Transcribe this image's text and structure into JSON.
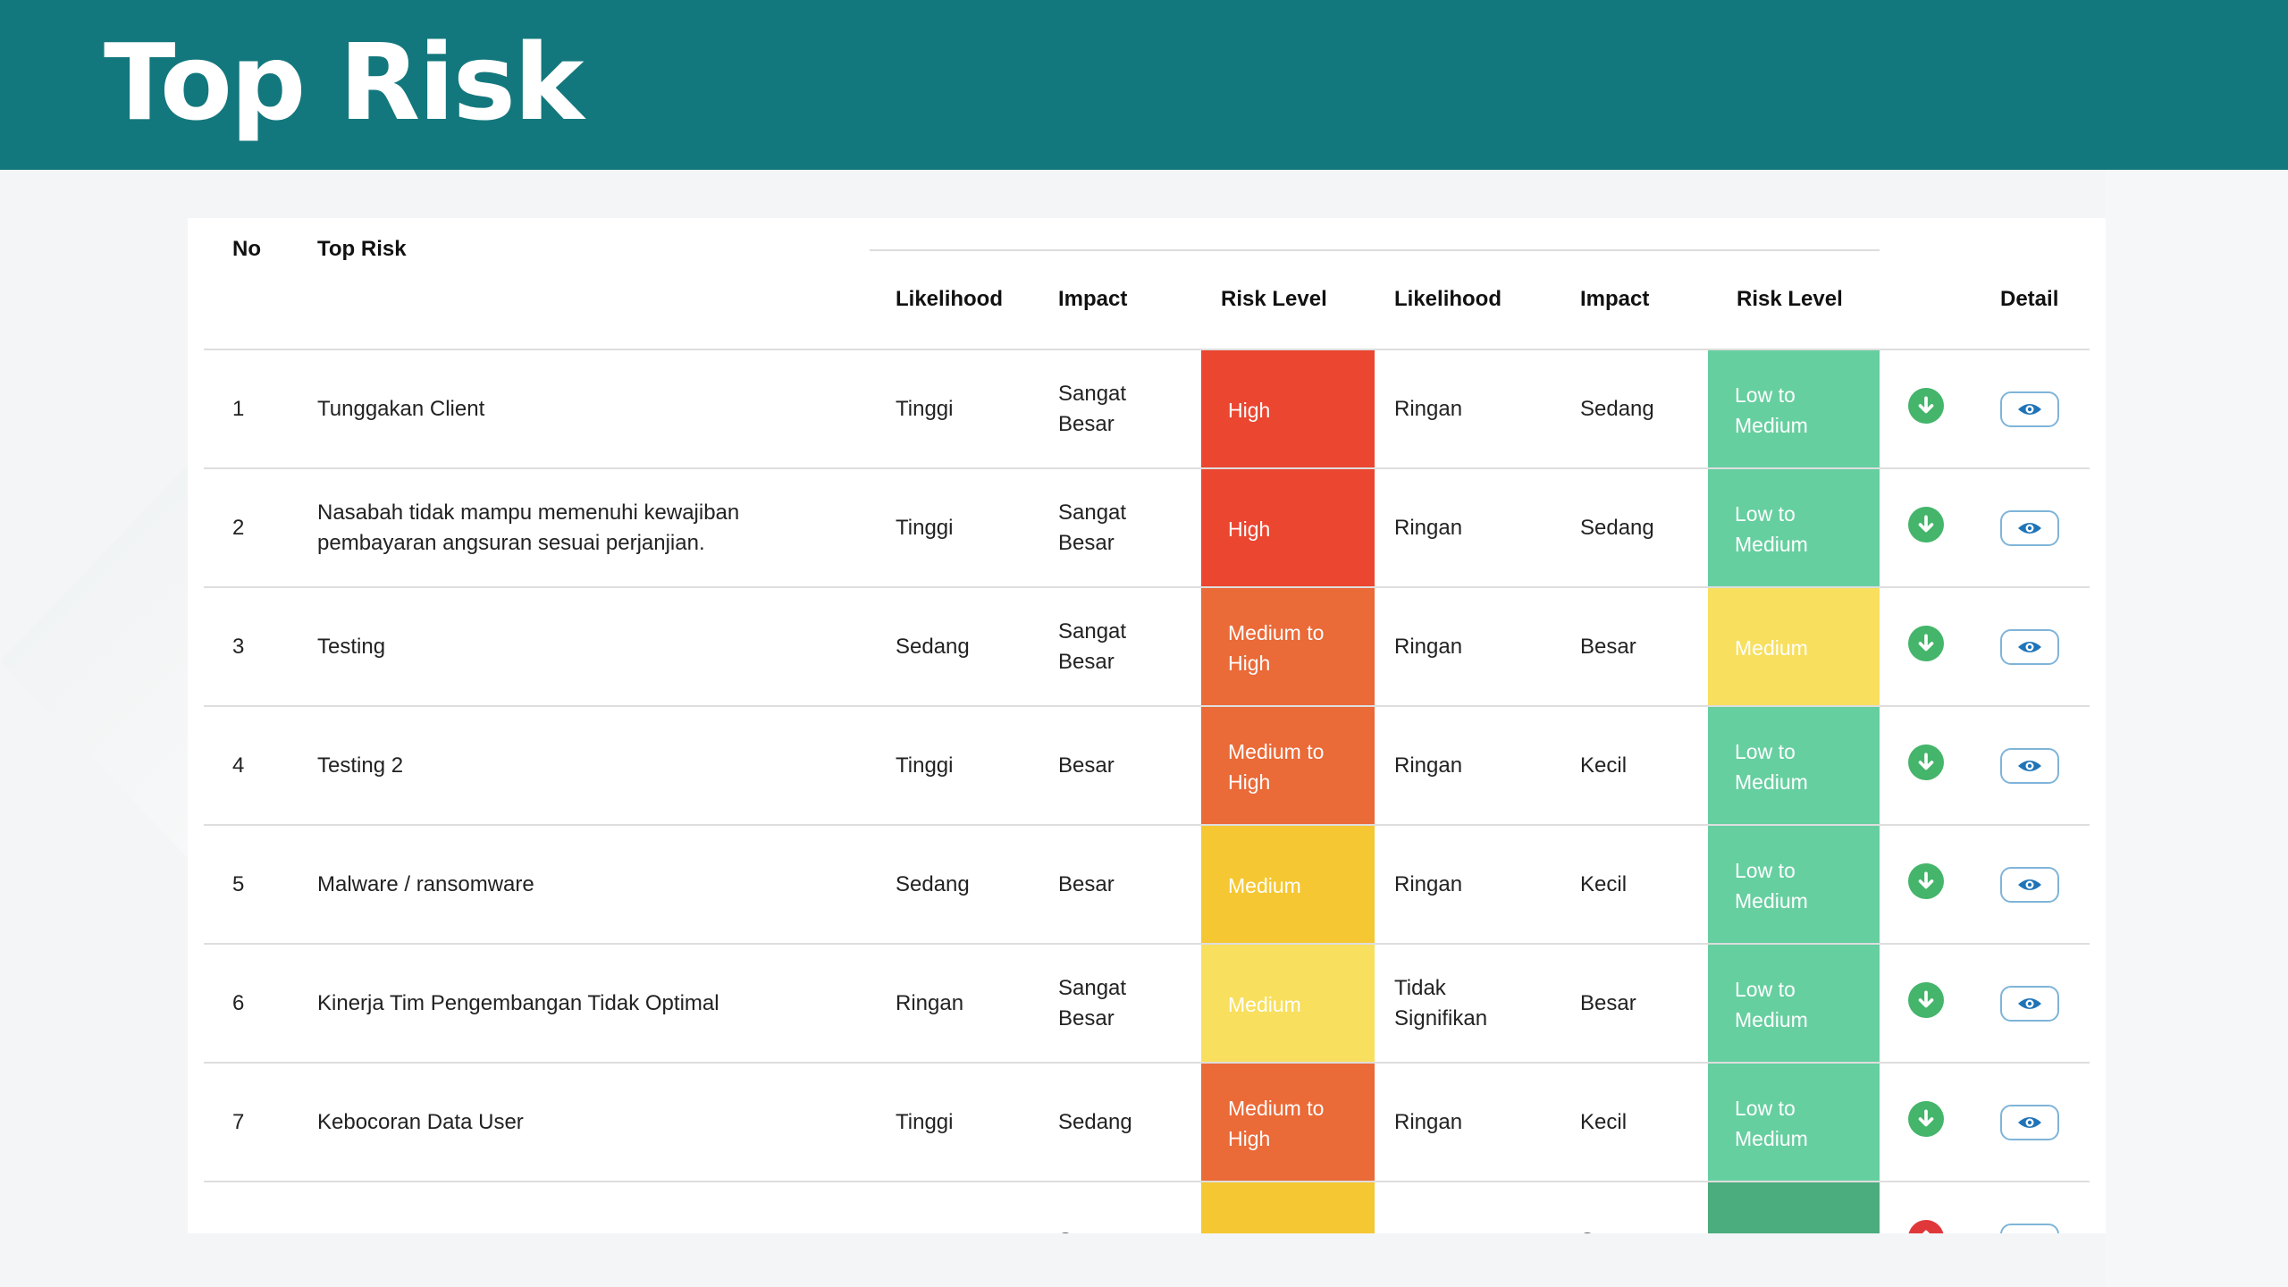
{
  "page": {
    "title": "Top Risk"
  },
  "colors": {
    "header": "#13787d",
    "high": "#ea4630",
    "medium_to_high": "#ea6a38",
    "medium_dark": "#f5c732",
    "medium_light": "#f8df5e",
    "low_to_medium": "#66cfa0",
    "low_dark": "#4bac7e",
    "arrow_green": "#44b56a",
    "arrow_red": "#e0383a",
    "eye_blue": "#1f74b8"
  },
  "table": {
    "headers": {
      "no": "No",
      "top_risk": "Top Risk",
      "likelihood_1": "Likelihood",
      "impact_1": "Impact",
      "risk_level_1": "Risk Level",
      "likelihood_2": "Likelihood",
      "impact_2": "Impact",
      "risk_level_2": "Risk Level",
      "detail": "Detail"
    },
    "rows": [
      {
        "no": "1",
        "risk": "Tunggakan Client",
        "lik1": "Tinggi",
        "imp1": "Sangat\nBesar",
        "lvl1": "High",
        "lvl1_color": "#ea4630",
        "lik2": "Ringan",
        "imp2": "Sedang",
        "lvl2": "Low to\nMedium",
        "lvl2_color": "#66cfa0",
        "arrow": "down-arrow-icon",
        "arrow_color": "#44b56a"
      },
      {
        "no": "2",
        "risk": "Nasabah tidak mampu memenuhi kewajiban\npembayaran angsuran sesuai perjanjian.",
        "lik1": "Tinggi",
        "imp1": "Sangat\nBesar",
        "lvl1": "High",
        "lvl1_color": "#ea4630",
        "lik2": "Ringan",
        "imp2": "Sedang",
        "lvl2": "Low to\nMedium",
        "lvl2_color": "#66cfa0",
        "arrow": "down-arrow-icon",
        "arrow_color": "#44b56a"
      },
      {
        "no": "3",
        "risk": "Testing",
        "lik1": "Sedang",
        "imp1": "Sangat\nBesar",
        "lvl1": "Medium to\nHigh",
        "lvl1_color": "#ea6a38",
        "lik2": "Ringan",
        "imp2": "Besar",
        "lvl2": "Medium",
        "lvl2_color": "#f8df5e",
        "arrow": "down-arrow-icon",
        "arrow_color": "#44b56a"
      },
      {
        "no": "4",
        "risk": "Testing 2",
        "lik1": "Tinggi",
        "imp1": "Besar",
        "lvl1": "Medium to\nHigh",
        "lvl1_color": "#ea6a38",
        "lik2": "Ringan",
        "imp2": "Kecil",
        "lvl2": "Low to\nMedium",
        "lvl2_color": "#66cfa0",
        "arrow": "down-arrow-icon",
        "arrow_color": "#44b56a"
      },
      {
        "no": "5",
        "risk": "Malware / ransomware",
        "lik1": "Sedang",
        "imp1": "Besar",
        "lvl1": "Medium",
        "lvl1_color": "#f5c732",
        "lik2": "Ringan",
        "imp2": "Kecil",
        "lvl2": "Low to\nMedium",
        "lvl2_color": "#66cfa0",
        "arrow": "down-arrow-icon",
        "arrow_color": "#44b56a"
      },
      {
        "no": "6",
        "risk": "Kinerja Tim Pengembangan Tidak Optimal",
        "lik1": "Ringan",
        "imp1": "Sangat\nBesar",
        "lvl1": "Medium",
        "lvl1_color": "#f8df5e",
        "lik2": "Tidak\nSignifikan",
        "imp2": "Besar",
        "lvl2": "Low to\nMedium",
        "lvl2_color": "#66cfa0",
        "arrow": "down-arrow-icon",
        "arrow_color": "#44b56a"
      },
      {
        "no": "7",
        "risk": "Kebocoran Data User",
        "lik1": "Tinggi",
        "imp1": "Sedang",
        "lvl1": "Medium to\nHigh",
        "lvl1_color": "#ea6a38",
        "lik2": "Ringan",
        "imp2": "Kecil",
        "lvl2": "Low to\nMedium",
        "lvl2_color": "#66cfa0",
        "arrow": "down-arrow-icon",
        "arrow_color": "#44b56a"
      },
      {
        "no": "",
        "risk": "",
        "lik1": "",
        "imp1": "Sangat",
        "lvl1": "",
        "lvl1_color": "#f5c732",
        "lik2": "",
        "imp2": "Sangat",
        "lvl2": "",
        "lvl2_color": "#4bac7e",
        "arrow": "up-arrow-icon",
        "arrow_color": "#e0383a"
      }
    ]
  }
}
